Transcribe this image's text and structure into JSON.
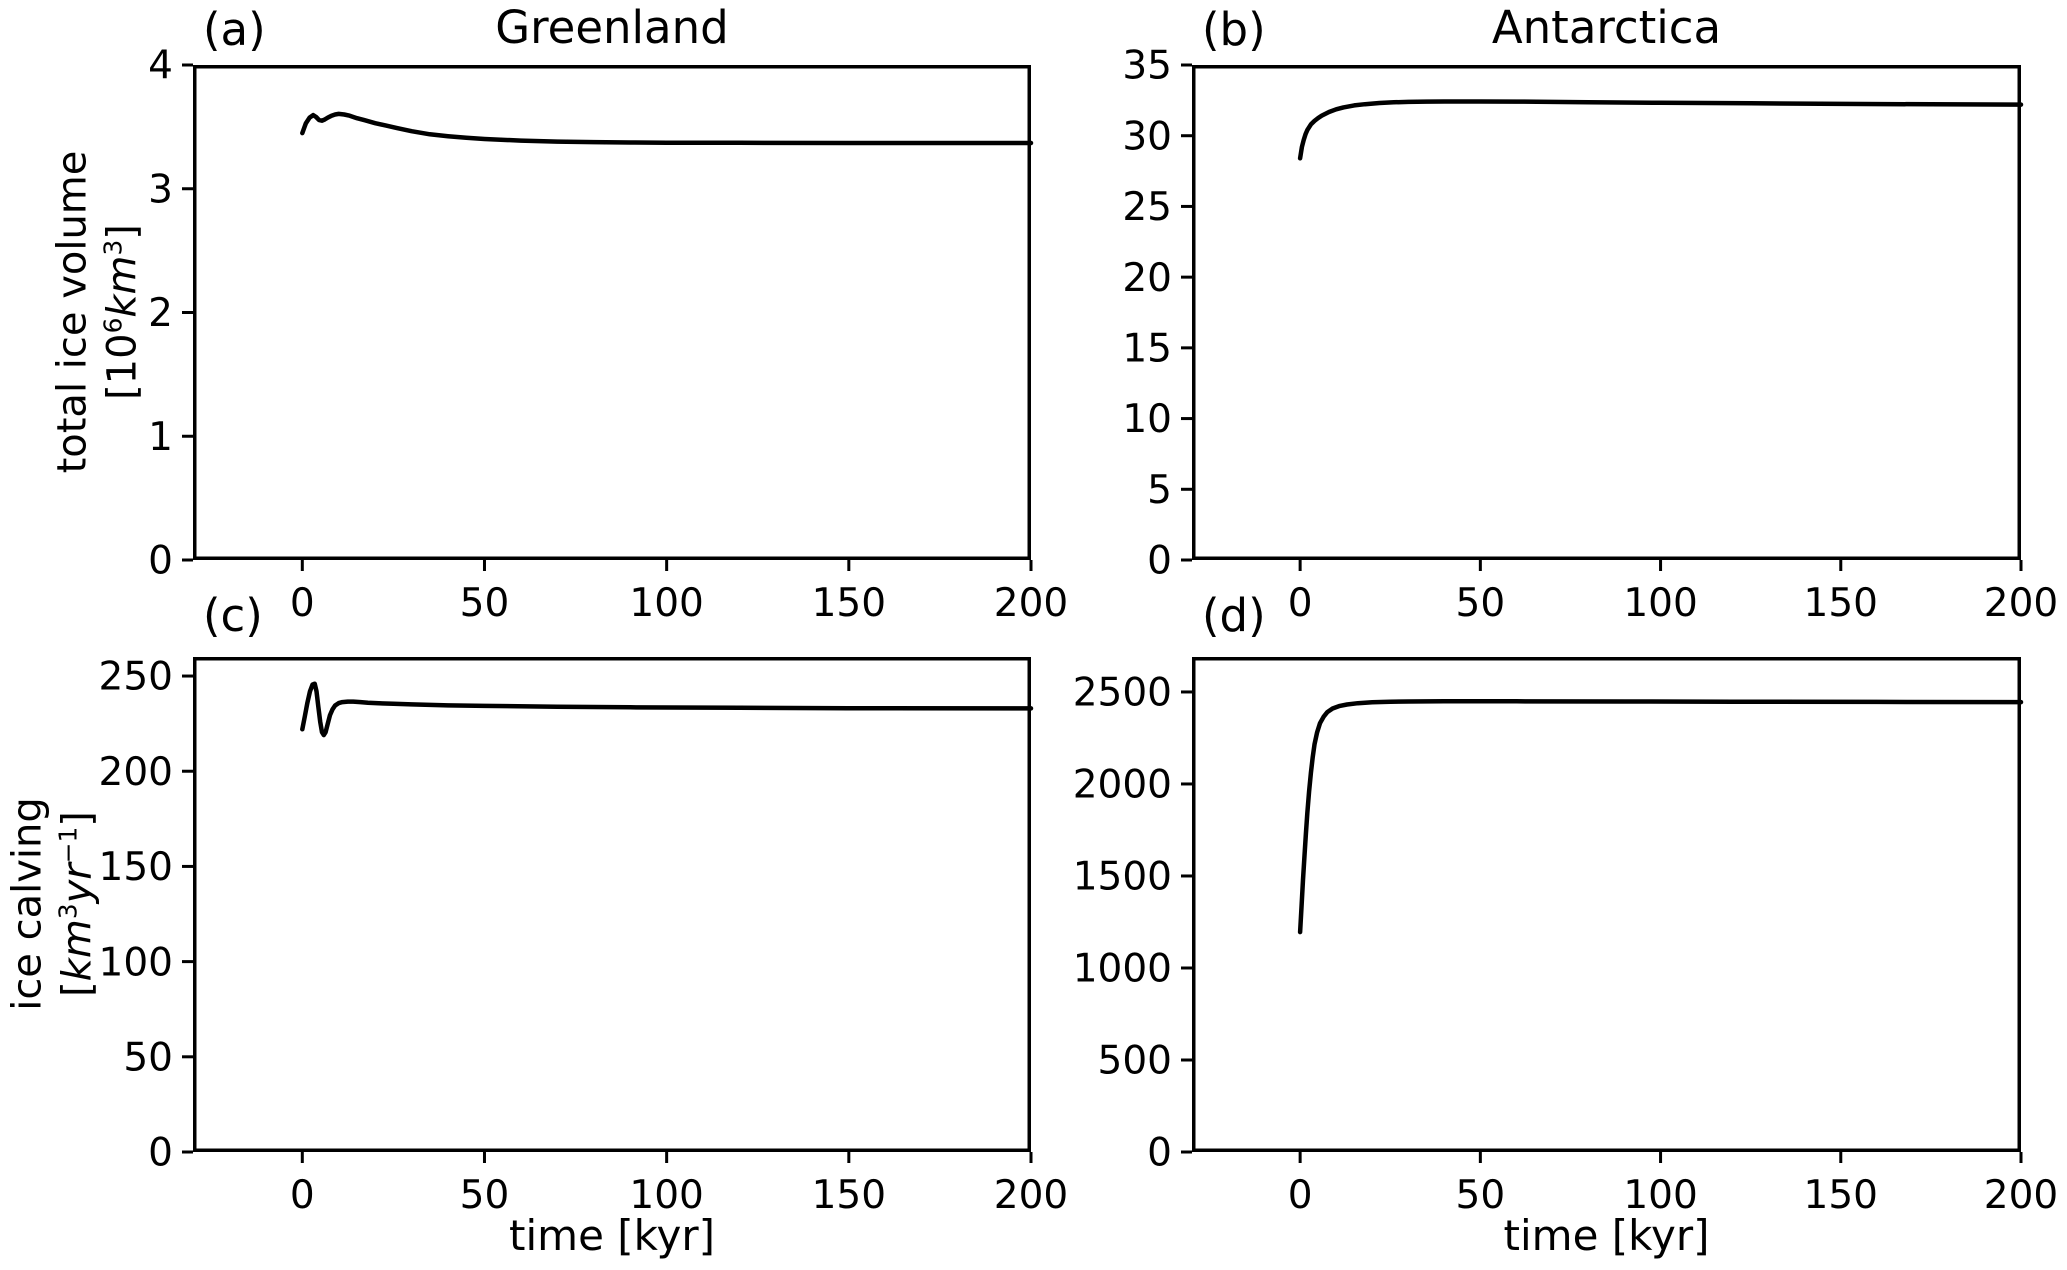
{
  "figure": {
    "background": "#ffffff",
    "line_color": "#000000",
    "text_color": "#000000"
  },
  "chart_data": [
    {
      "type": "line",
      "panel_label": "(a)",
      "title": "Greenland",
      "ylabel_line1": "total ice volume",
      "ylabel_line2_parts": [
        {
          "text": "["
        },
        {
          "text": "10"
        },
        {
          "text": "6",
          "sup": true
        },
        {
          "text": "km",
          "italic": true
        },
        {
          "text": "3",
          "sup": true
        },
        {
          "text": "]"
        }
      ],
      "xlabel": "",
      "xlim": [
        -30,
        200
      ],
      "ylim": [
        0,
        4
      ],
      "xticks": [
        0,
        50,
        100,
        150,
        200
      ],
      "yticks": [
        0,
        1,
        2,
        3,
        4
      ],
      "grid": false,
      "series": [
        {
          "name": "Greenland total ice volume",
          "color": "#000000",
          "points": [
            [
              0,
              3.45
            ],
            [
              0.5,
              3.49
            ],
            [
              1,
              3.53
            ],
            [
              2,
              3.575
            ],
            [
              3,
              3.595
            ],
            [
              3.8,
              3.58
            ],
            [
              4.6,
              3.555
            ],
            [
              5.4,
              3.55
            ],
            [
              6.2,
              3.56
            ],
            [
              7,
              3.575
            ],
            [
              8,
              3.59
            ],
            [
              9,
              3.6
            ],
            [
              10,
              3.605
            ],
            [
              11.5,
              3.6
            ],
            [
              13,
              3.59
            ],
            [
              15,
              3.57
            ],
            [
              17,
              3.555
            ],
            [
              20,
              3.53
            ],
            [
              23,
              3.51
            ],
            [
              26,
              3.49
            ],
            [
              30,
              3.465
            ],
            [
              35,
              3.44
            ],
            [
              40,
              3.425
            ],
            [
              45,
              3.412
            ],
            [
              50,
              3.402
            ],
            [
              60,
              3.389
            ],
            [
              70,
              3.381
            ],
            [
              80,
              3.377
            ],
            [
              90,
              3.374
            ],
            [
              100,
              3.372
            ],
            [
              120,
              3.371
            ],
            [
              150,
              3.37
            ],
            [
              200,
              3.37
            ]
          ]
        }
      ]
    },
    {
      "type": "line",
      "panel_label": "(b)",
      "title": "Antarctica",
      "ylabel_line1": "",
      "ylabel_line2_parts": [],
      "xlabel": "",
      "xlim": [
        -30,
        200
      ],
      "ylim": [
        0,
        35
      ],
      "xticks": [
        0,
        50,
        100,
        150,
        200
      ],
      "yticks": [
        0,
        5,
        10,
        15,
        20,
        25,
        30,
        35
      ],
      "grid": false,
      "series": [
        {
          "name": "Antarctica total ice volume",
          "color": "#000000",
          "points": [
            [
              0,
              28.4
            ],
            [
              0.5,
              29.2
            ],
            [
              1,
              29.7
            ],
            [
              1.5,
              30.1
            ],
            [
              2,
              30.4
            ],
            [
              3,
              30.8
            ],
            [
              4,
              31.05
            ],
            [
              5,
              31.25
            ],
            [
              6,
              31.42
            ],
            [
              8,
              31.68
            ],
            [
              10,
              31.87
            ],
            [
              12,
              32.0
            ],
            [
              15,
              32.14
            ],
            [
              18,
              32.23
            ],
            [
              22,
              32.31
            ],
            [
              26,
              32.36
            ],
            [
              30,
              32.39
            ],
            [
              35,
              32.41
            ],
            [
              40,
              32.42
            ],
            [
              50,
              32.42
            ],
            [
              60,
              32.41
            ],
            [
              80,
              32.37
            ],
            [
              100,
              32.33
            ],
            [
              125,
              32.29
            ],
            [
              150,
              32.25
            ],
            [
              175,
              32.22
            ],
            [
              200,
              32.2
            ]
          ]
        }
      ]
    },
    {
      "type": "line",
      "panel_label": "(c)",
      "title": "",
      "ylabel_line1": "ice calving",
      "ylabel_line2_parts": [
        {
          "text": "["
        },
        {
          "text": "km",
          "italic": true
        },
        {
          "text": "3",
          "sup": true
        },
        {
          "text": "yr",
          "italic": true
        },
        {
          "text": "−1",
          "sup": true
        },
        {
          "text": "]"
        }
      ],
      "xlabel": "time [kyr]",
      "xlim": [
        -30,
        200
      ],
      "ylim": [
        0,
        260
      ],
      "xticks": [
        0,
        50,
        100,
        150,
        200
      ],
      "yticks": [
        0,
        50,
        100,
        150,
        200,
        250
      ],
      "grid": false,
      "series": [
        {
          "name": "Greenland ice calving",
          "color": "#000000",
          "points": [
            [
              0,
              222
            ],
            [
              0.7,
              229
            ],
            [
              1.4,
              236
            ],
            [
              2.1,
              242
            ],
            [
              2.8,
              245.5
            ],
            [
              3.4,
              246
            ],
            [
              3.9,
              242
            ],
            [
              4.4,
              234
            ],
            [
              4.9,
              226
            ],
            [
              5.4,
              220.5
            ],
            [
              5.9,
              219
            ],
            [
              6.4,
              220.5
            ],
            [
              7,
              225
            ],
            [
              7.6,
              229.5
            ],
            [
              8.3,
              232.5
            ],
            [
              9,
              234.5
            ],
            [
              10,
              235.8
            ],
            [
              11,
              236.3
            ],
            [
              12.5,
              236.6
            ],
            [
              14,
              236.6
            ],
            [
              16,
              236.3
            ],
            [
              18,
              236
            ],
            [
              21,
              235.7
            ],
            [
              25,
              235.4
            ],
            [
              30,
              235.1
            ],
            [
              40,
              234.6
            ],
            [
              50,
              234.3
            ],
            [
              70,
              233.9
            ],
            [
              90,
              233.6
            ],
            [
              120,
              233.3
            ],
            [
              150,
              233.1
            ],
            [
              200,
              233
            ]
          ]
        }
      ]
    },
    {
      "type": "line",
      "panel_label": "(d)",
      "title": "",
      "ylabel_line1": "",
      "ylabel_line2_parts": [],
      "xlabel": "time [kyr]",
      "xlim": [
        -30,
        200
      ],
      "ylim": [
        0,
        2690
      ],
      "xticks": [
        0,
        50,
        100,
        150,
        200
      ],
      "yticks": [
        0,
        500,
        1000,
        1500,
        2000,
        2500
      ],
      "grid": false,
      "series": [
        {
          "name": "Antarctica ice calving",
          "color": "#000000",
          "points": [
            [
              0,
              1195
            ],
            [
              0.4,
              1340
            ],
            [
              0.8,
              1480
            ],
            [
              1.2,
              1610
            ],
            [
              1.6,
              1730
            ],
            [
              2,
              1840
            ],
            [
              2.5,
              1960
            ],
            [
              3,
              2060
            ],
            [
              3.5,
              2145
            ],
            [
              4,
              2215
            ],
            [
              4.7,
              2280
            ],
            [
              5.5,
              2330
            ],
            [
              6.5,
              2365
            ],
            [
              7.5,
              2390
            ],
            [
              9,
              2410
            ],
            [
              11,
              2424
            ],
            [
              13,
              2432
            ],
            [
              16,
              2439
            ],
            [
              20,
              2444
            ],
            [
              25,
              2447
            ],
            [
              30,
              2448
            ],
            [
              40,
              2449
            ],
            [
              60,
              2449
            ],
            [
              90,
              2448
            ],
            [
              120,
              2447
            ],
            [
              160,
              2446
            ],
            [
              200,
              2445
            ]
          ]
        }
      ]
    }
  ]
}
